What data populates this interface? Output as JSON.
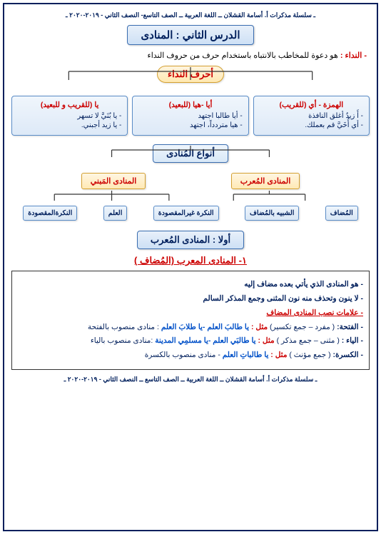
{
  "header": "ـ سلسلة مذكرات  أ. أسامة القشلان ــ اللغة العربية ــ الصف التاسع- النصف الثاني - ٢٠١٩-٢٠٢٠ ـ",
  "footer": "ـ سلسلة مذكرات  أ. أسامة القشلان ــ اللغة العربية ــ الصف التاسع ــ النصف الثاني - ٢٠١٩-٢٠٢٠ ـ",
  "lesson_title": "الدرس الثاني : المنادى",
  "definition": {
    "term": "- النداء :",
    "text": " هو دعوة للمخاطب بالانتباه باستخدام حرف من حروف النداء"
  },
  "letters_hdr": "أحرف النداء",
  "letters": [
    {
      "title": "الهمزة - أي (للقريب)",
      "ex": [
        "- أَ زيدُ أغلق النافذة",
        "- أي أُخَيَّ قم بعملك."
      ]
    },
    {
      "title": "أيا -هيا (للبعيد)",
      "ex": [
        "- أيا طالبا اجتهد",
        "- هيا متردداً، اجتهد"
      ]
    },
    {
      "title": "يا (للقريب و للبعيد)",
      "ex": [
        "- يا بُنَيَّ لا تسهر",
        "- يا زيد أجبني."
      ]
    }
  ],
  "types_hdr": "أنواع المُنادى",
  "types": {
    "right": {
      "hdr": "المنادى المُعرب",
      "children": [
        "المُضاف",
        "الشبيه بالمُضاف",
        "النكرة غيرالمقصودة"
      ]
    },
    "left": {
      "hdr": "المنادى المَبني",
      "children": [
        "العلم",
        "النكرةالمقصودة"
      ]
    }
  },
  "first_title": "أولا : المنادى المُعرب",
  "sub1_title": "١- المنادى المعرب (المُضاف )",
  "sub1_lines": [
    "- هو المنادى الذي يأتي بعده مضاف إليه",
    "- لا ينون وتحذف منه نون المثنى وجمع المذكر السالم"
  ],
  "marks_hdr": "- علامات نصب المنادى المضاف",
  "marks": [
    {
      "label": "- الفتحة:",
      "note": "( مفرد – جمع تكسير)",
      "ex_pre": "مثل :",
      "ex": "يا طالبَ العلم -يا طلابَ العلم",
      "tail": ": منادى منصوب بالفتحة"
    },
    {
      "label": "- الياء :",
      "note": "( مثنى – جمع مذكر )",
      "ex_pre": "مثل :",
      "ex": "يا طالبَي العلم -يا مسلمِي المدينة",
      "tail": ":منادى منصوب بالياء"
    },
    {
      "label": "- الكسرة:",
      "note": "( جمع مؤنث )",
      "ex_pre": "مثل :",
      "ex": "يا طالباتِ العلم",
      "tail": "- منادى منصوب بالكسرة"
    }
  ]
}
